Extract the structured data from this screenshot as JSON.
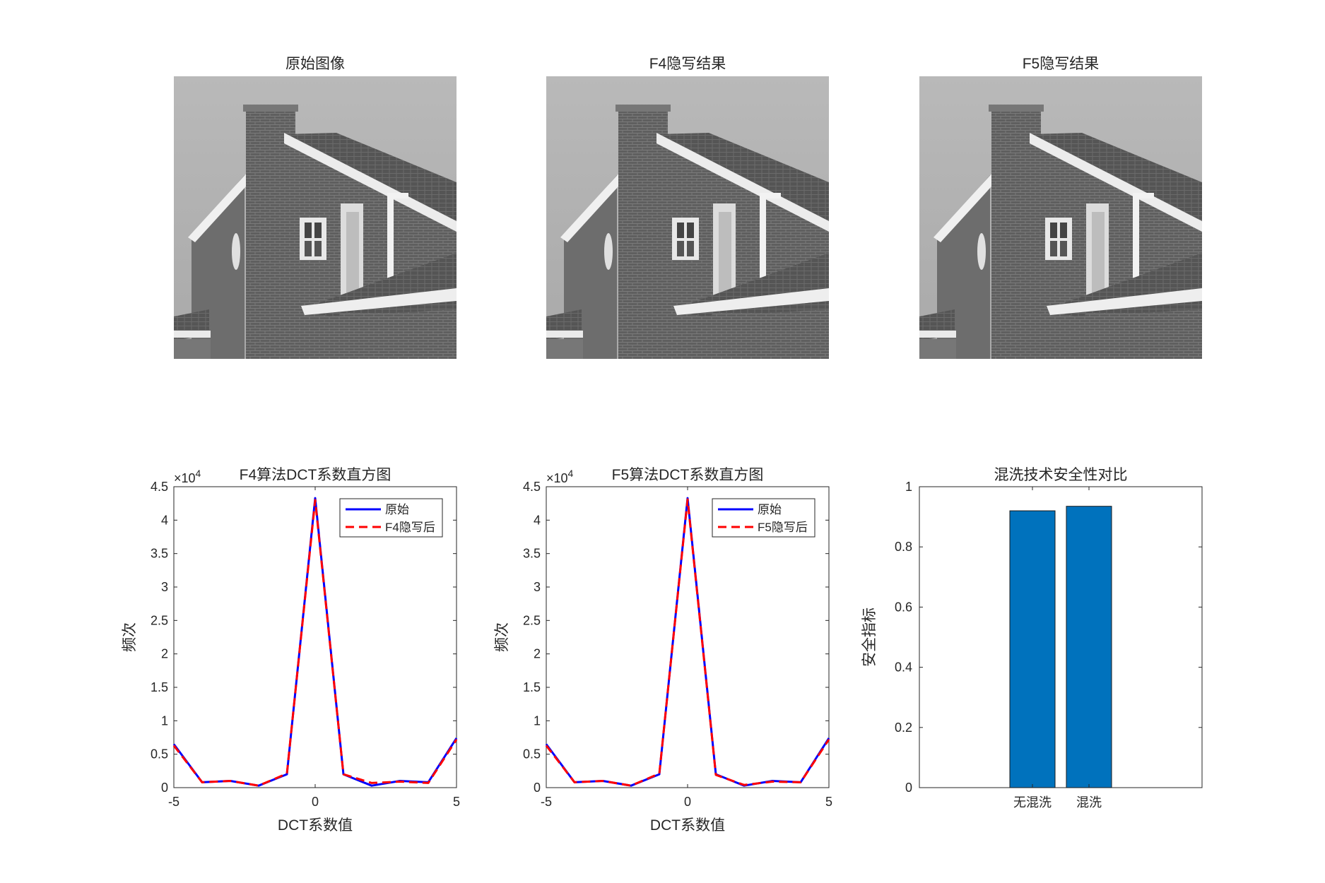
{
  "images": [
    {
      "title": "原始图像",
      "icon": "house-image"
    },
    {
      "title": "F4隐写结果",
      "icon": "house-image"
    },
    {
      "title": "F5隐写结果",
      "icon": "house-image"
    }
  ],
  "chart_data": [
    {
      "type": "line",
      "title": "F4算法DCT系数直方图",
      "xlabel": "DCT系数值",
      "ylabel": "频次",
      "exponent": "×10",
      "exponent_power": "4",
      "xlim": [
        -5,
        5
      ],
      "ylim": [
        0,
        4.5
      ],
      "x": [
        -5,
        -4,
        -3,
        -2,
        -1,
        0,
        1,
        2,
        3,
        4,
        5
      ],
      "xticks": [
        "-5",
        "0",
        "5"
      ],
      "yticks": [
        "0",
        "0.5",
        "1",
        "1.5",
        "2",
        "2.5",
        "3",
        "3.5",
        "4",
        "4.5"
      ],
      "series": [
        {
          "name": "原始",
          "color": "#0000ff",
          "style": "solid",
          "values": [
            0.65,
            0.08,
            0.1,
            0.03,
            0.2,
            4.33,
            0.2,
            0.03,
            0.1,
            0.08,
            0.74
          ]
        },
        {
          "name": "F4隐写后",
          "color": "#ff0000",
          "style": "dashed",
          "values": [
            0.63,
            0.08,
            0.1,
            0.03,
            0.21,
            4.3,
            0.2,
            0.07,
            0.09,
            0.07,
            0.72
          ]
        }
      ],
      "legend": "top-right"
    },
    {
      "type": "line",
      "title": "F5算法DCT系数直方图",
      "xlabel": "DCT系数值",
      "ylabel": "频次",
      "exponent": "×10",
      "exponent_power": "4",
      "xlim": [
        -5,
        5
      ],
      "ylim": [
        0,
        4.5
      ],
      "x": [
        -5,
        -4,
        -3,
        -2,
        -1,
        0,
        1,
        2,
        3,
        4,
        5
      ],
      "xticks": [
        "-5",
        "0",
        "5"
      ],
      "yticks": [
        "0",
        "0.5",
        "1",
        "1.5",
        "2",
        "2.5",
        "3",
        "3.5",
        "4",
        "4.5"
      ],
      "series": [
        {
          "name": "原始",
          "color": "#0000ff",
          "style": "solid",
          "values": [
            0.65,
            0.08,
            0.1,
            0.03,
            0.2,
            4.33,
            0.2,
            0.03,
            0.1,
            0.08,
            0.74
          ]
        },
        {
          "name": "F5隐写后",
          "color": "#ff0000",
          "style": "dashed",
          "values": [
            0.63,
            0.08,
            0.1,
            0.03,
            0.21,
            4.31,
            0.19,
            0.04,
            0.09,
            0.08,
            0.72
          ]
        }
      ],
      "legend": "top-right"
    },
    {
      "type": "bar",
      "title": "混洗技术安全性对比",
      "ylabel": "安全指标",
      "categories": [
        "无混洗",
        "混洗"
      ],
      "values": [
        0.92,
        0.935
      ],
      "color": "#0072bd",
      "ylim": [
        0,
        1
      ],
      "yticks": [
        "0",
        "0.2",
        "0.4",
        "0.6",
        "0.8",
        "1"
      ]
    }
  ]
}
